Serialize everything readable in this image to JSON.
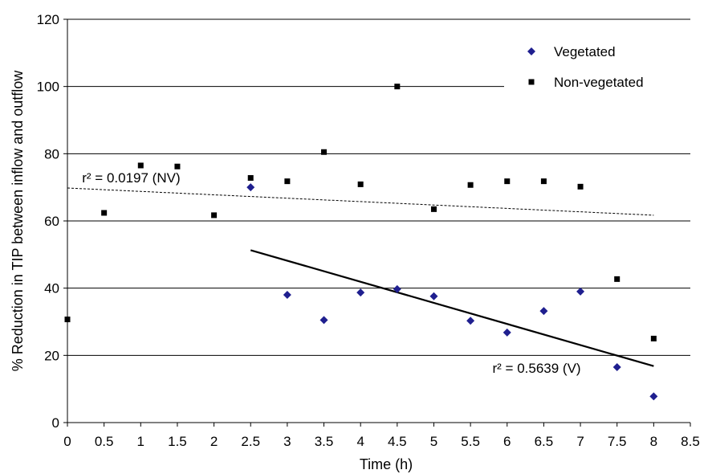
{
  "chart_data": {
    "type": "scatter",
    "xlabel": "Time (h)",
    "ylabel": "% Reduction in TIP between inflow and outflow",
    "xlim": [
      0,
      8.5
    ],
    "ylim": [
      0,
      120
    ],
    "x_ticks": [
      0,
      0.5,
      1,
      1.5,
      2,
      2.5,
      3,
      3.5,
      4,
      4.5,
      5,
      5.5,
      6,
      6.5,
      7,
      7.5,
      8,
      8.5
    ],
    "y_ticks": [
      0,
      20,
      40,
      60,
      80,
      100,
      120
    ],
    "gridlines": "horizontal",
    "legend_position": "top-right",
    "series": [
      {
        "name": "Vegetated",
        "marker": "diamond",
        "color": "#1f1f8f",
        "points": [
          [
            2.5,
            70
          ],
          [
            3,
            38
          ],
          [
            3.5,
            30.5
          ],
          [
            4,
            38.7
          ],
          [
            4.5,
            39.7
          ],
          [
            5,
            37.6
          ],
          [
            5.5,
            30.3
          ],
          [
            6,
            26.8
          ],
          [
            6.5,
            33.2
          ],
          [
            7,
            39
          ],
          [
            7.5,
            16.5
          ],
          [
            8,
            7.8
          ]
        ],
        "trendline": {
          "x": [
            2.5,
            8
          ],
          "y": [
            51.3,
            16.8
          ],
          "style": "solid"
        }
      },
      {
        "name": "Non-vegetated",
        "marker": "square",
        "color": "#000000",
        "points": [
          [
            0,
            30.7
          ],
          [
            0.5,
            62.4
          ],
          [
            1,
            76.5
          ],
          [
            1.5,
            76.2
          ],
          [
            2,
            61.7
          ],
          [
            2.5,
            72.8
          ],
          [
            3,
            71.8
          ],
          [
            3.5,
            80.5
          ],
          [
            4,
            70.9
          ],
          [
            4.5,
            100
          ],
          [
            5,
            63.5
          ],
          [
            5.5,
            70.7
          ],
          [
            6,
            71.8
          ],
          [
            6.5,
            71.8
          ],
          [
            7,
            70.2
          ],
          [
            7.5,
            42.7
          ],
          [
            8,
            25
          ]
        ],
        "trendline": {
          "x": [
            0,
            8
          ],
          "y": [
            69.8,
            61.7
          ],
          "style": "dotted"
        }
      }
    ],
    "annotations": [
      {
        "text": "r² = 0.0197 (NV)",
        "x": 0.2,
        "y": 71.5
      },
      {
        "text": "r² = 0.5639 (V)",
        "x": 5.8,
        "y": 14.8
      }
    ]
  }
}
